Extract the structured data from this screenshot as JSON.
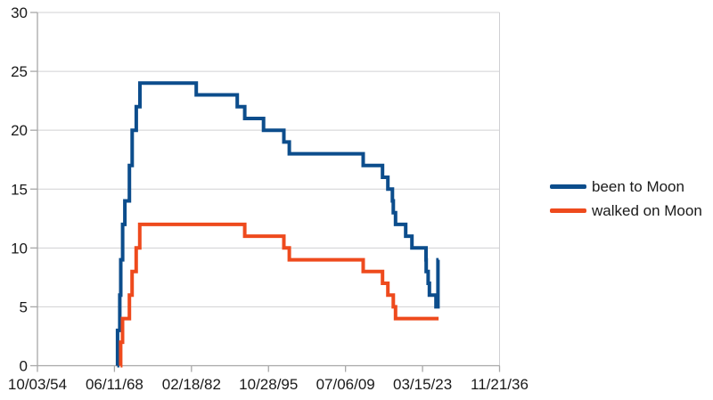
{
  "colors": {
    "background": "#ffffff",
    "grid": "#d0d0d3",
    "axis": "#a8a8a8",
    "text": "#1a1a1a",
    "been_to_moon": "#0c4d8c",
    "walked_on_moon": "#ee4a1d"
  },
  "chart_data": {
    "type": "line",
    "subtype": "step-after",
    "title": "",
    "xlabel": "",
    "ylabel": "",
    "grid": "horizontal",
    "legend_position": "right",
    "x_axis": {
      "range": [
        1954.756,
        2036.891
      ],
      "tick_values": [
        1954.756,
        1968.445,
        1982.134,
        1995.825,
        2009.512,
        2023.203,
        2036.891
      ],
      "tick_labels": [
        "10/03/54",
        "06/11/68",
        "02/18/82",
        "10/28/95",
        "07/06/09",
        "03/15/23",
        "11/21/36"
      ]
    },
    "y_axis": {
      "range": [
        0,
        30
      ],
      "ticks": [
        0,
        5,
        10,
        15,
        20,
        25,
        30
      ]
    },
    "series": [
      {
        "name": "been to Moon",
        "color": "#0c4d8c",
        "end": 2026.05,
        "points": [
          [
            1968.95,
            0
          ],
          [
            1968.99,
            3
          ],
          [
            1969.4,
            6
          ],
          [
            1969.56,
            9
          ],
          [
            1969.9,
            12
          ],
          [
            1970.29,
            14
          ],
          [
            1971.11,
            17
          ],
          [
            1971.6,
            20
          ],
          [
            1972.32,
            22
          ],
          [
            1972.97,
            24
          ],
          [
            1982.99,
            23
          ],
          [
            1990.27,
            22
          ],
          [
            1991.6,
            21
          ],
          [
            1994.95,
            20
          ],
          [
            1998.55,
            19
          ],
          [
            1999.52,
            18
          ],
          [
            2012.65,
            17
          ],
          [
            2016.09,
            16
          ],
          [
            2017.04,
            15
          ],
          [
            2017.85,
            14
          ],
          [
            2018.01,
            13
          ],
          [
            2018.4,
            12
          ],
          [
            2020.21,
            11
          ],
          [
            2021.32,
            10
          ],
          [
            2023.83,
            9
          ],
          [
            2023.85,
            8
          ],
          [
            2024.21,
            7
          ],
          [
            2024.43,
            6
          ],
          [
            2025.6,
            5
          ],
          [
            2025.95,
            9
          ]
        ]
      },
      {
        "name": "walked on Moon",
        "color": "#ee4a1d",
        "end": 2026.05,
        "points": [
          [
            1969.53,
            0
          ],
          [
            1969.55,
            2
          ],
          [
            1969.88,
            4
          ],
          [
            1971.1,
            6
          ],
          [
            1971.58,
            8
          ],
          [
            1972.3,
            10
          ],
          [
            1972.94,
            12
          ],
          [
            1991.6,
            11
          ],
          [
            1998.55,
            10
          ],
          [
            1999.52,
            9
          ],
          [
            2012.65,
            8
          ],
          [
            2016.09,
            7
          ],
          [
            2017.04,
            6
          ],
          [
            2018.01,
            5
          ],
          [
            2018.4,
            4
          ]
        ]
      }
    ]
  }
}
